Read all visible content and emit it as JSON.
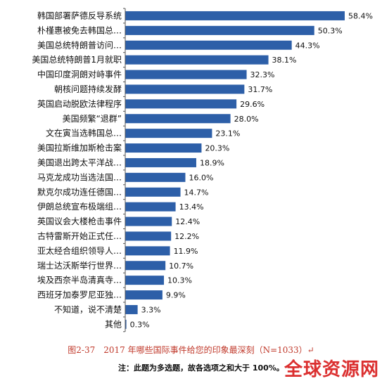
{
  "chart_data": {
    "type": "bar",
    "orientation": "horizontal",
    "categories": [
      "韩国部署萨德反导系统",
      "朴槿惠被免去韩国总…",
      "美国总统特朗普访问…",
      "美国总统特朗普1月就职",
      "中国印度洞朗对峙事件",
      "朝核问题持续发酵",
      "英国启动脱欧法律程序",
      "美国频繁“退群”",
      "文在寅当选韩国总…",
      "美国拉斯维加斯枪击案",
      "美国退出跨太平洋战…",
      "马克龙成功当选法国…",
      "默克尔成功连任德国…",
      "伊朗总统宣布极端组…",
      "英国议会大楼枪击事件",
      "古特雷斯开始正式任…",
      "亚太经合组织领导人…",
      "瑞士达沃斯举行世界…",
      "埃及西奈半岛清真寺…",
      "西班牙加泰罗尼亚独…",
      "不知道，说不清楚",
      "其他"
    ],
    "values": [
      58.4,
      50.3,
      44.3,
      38.1,
      32.3,
      31.7,
      29.6,
      28.0,
      23.1,
      20.3,
      18.9,
      16.0,
      14.7,
      13.4,
      12.4,
      12.2,
      11.9,
      10.7,
      10.3,
      9.9,
      3.3,
      0.3
    ],
    "value_labels": [
      "58.4%",
      "50.3%",
      "44.3%",
      "38.1%",
      "32.3%",
      "31.7%",
      "29.6%",
      "28.0%",
      "23.1%",
      "20.3%",
      "18.9%",
      "16.0%",
      "14.7%",
      "13.4%",
      "12.4%",
      "12.2%",
      "11.9%",
      "10.7%",
      "10.3%",
      "9.9%",
      "3.3%",
      "0.3%"
    ],
    "xlim": [
      0,
      70
    ],
    "grid": false,
    "bar_color": "#2d5fa8"
  },
  "caption": {
    "figure_no": "图2-37",
    "title": "2017 年哪些国际事件给您的印象最深刻（N=1033）↵"
  },
  "note": "注：此题为多选题，故各选项之和大于 100%。",
  "watermark": "全球资源网"
}
